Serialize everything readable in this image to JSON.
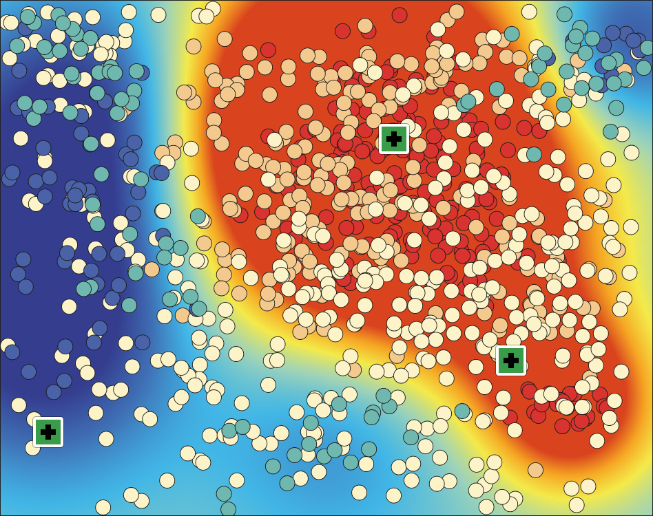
{
  "map": {
    "title": "",
    "colors": {
      "surface_ramp": [
        "#353d8f",
        "#3f6fb5",
        "#41b6e6",
        "#9fd3b8",
        "#f4ea4a",
        "#f5a623",
        "#d9431e"
      ],
      "point_classes": {
        "very_low": "#4a63a8",
        "low": "#6fb8b0",
        "medium": "#fdf3c8",
        "high": "#f3c98e",
        "very_high": "#d8332f"
      },
      "marker_fill": "#3a9b48",
      "marker_border": "#ffffff",
      "point_outline": "#1a1a1a"
    },
    "markers": [
      {
        "id": "facility-1",
        "icon": "plus-icon"
      },
      {
        "id": "facility-2",
        "icon": "plus-icon"
      },
      {
        "id": "facility-3",
        "icon": "plus-icon"
      }
    ]
  }
}
